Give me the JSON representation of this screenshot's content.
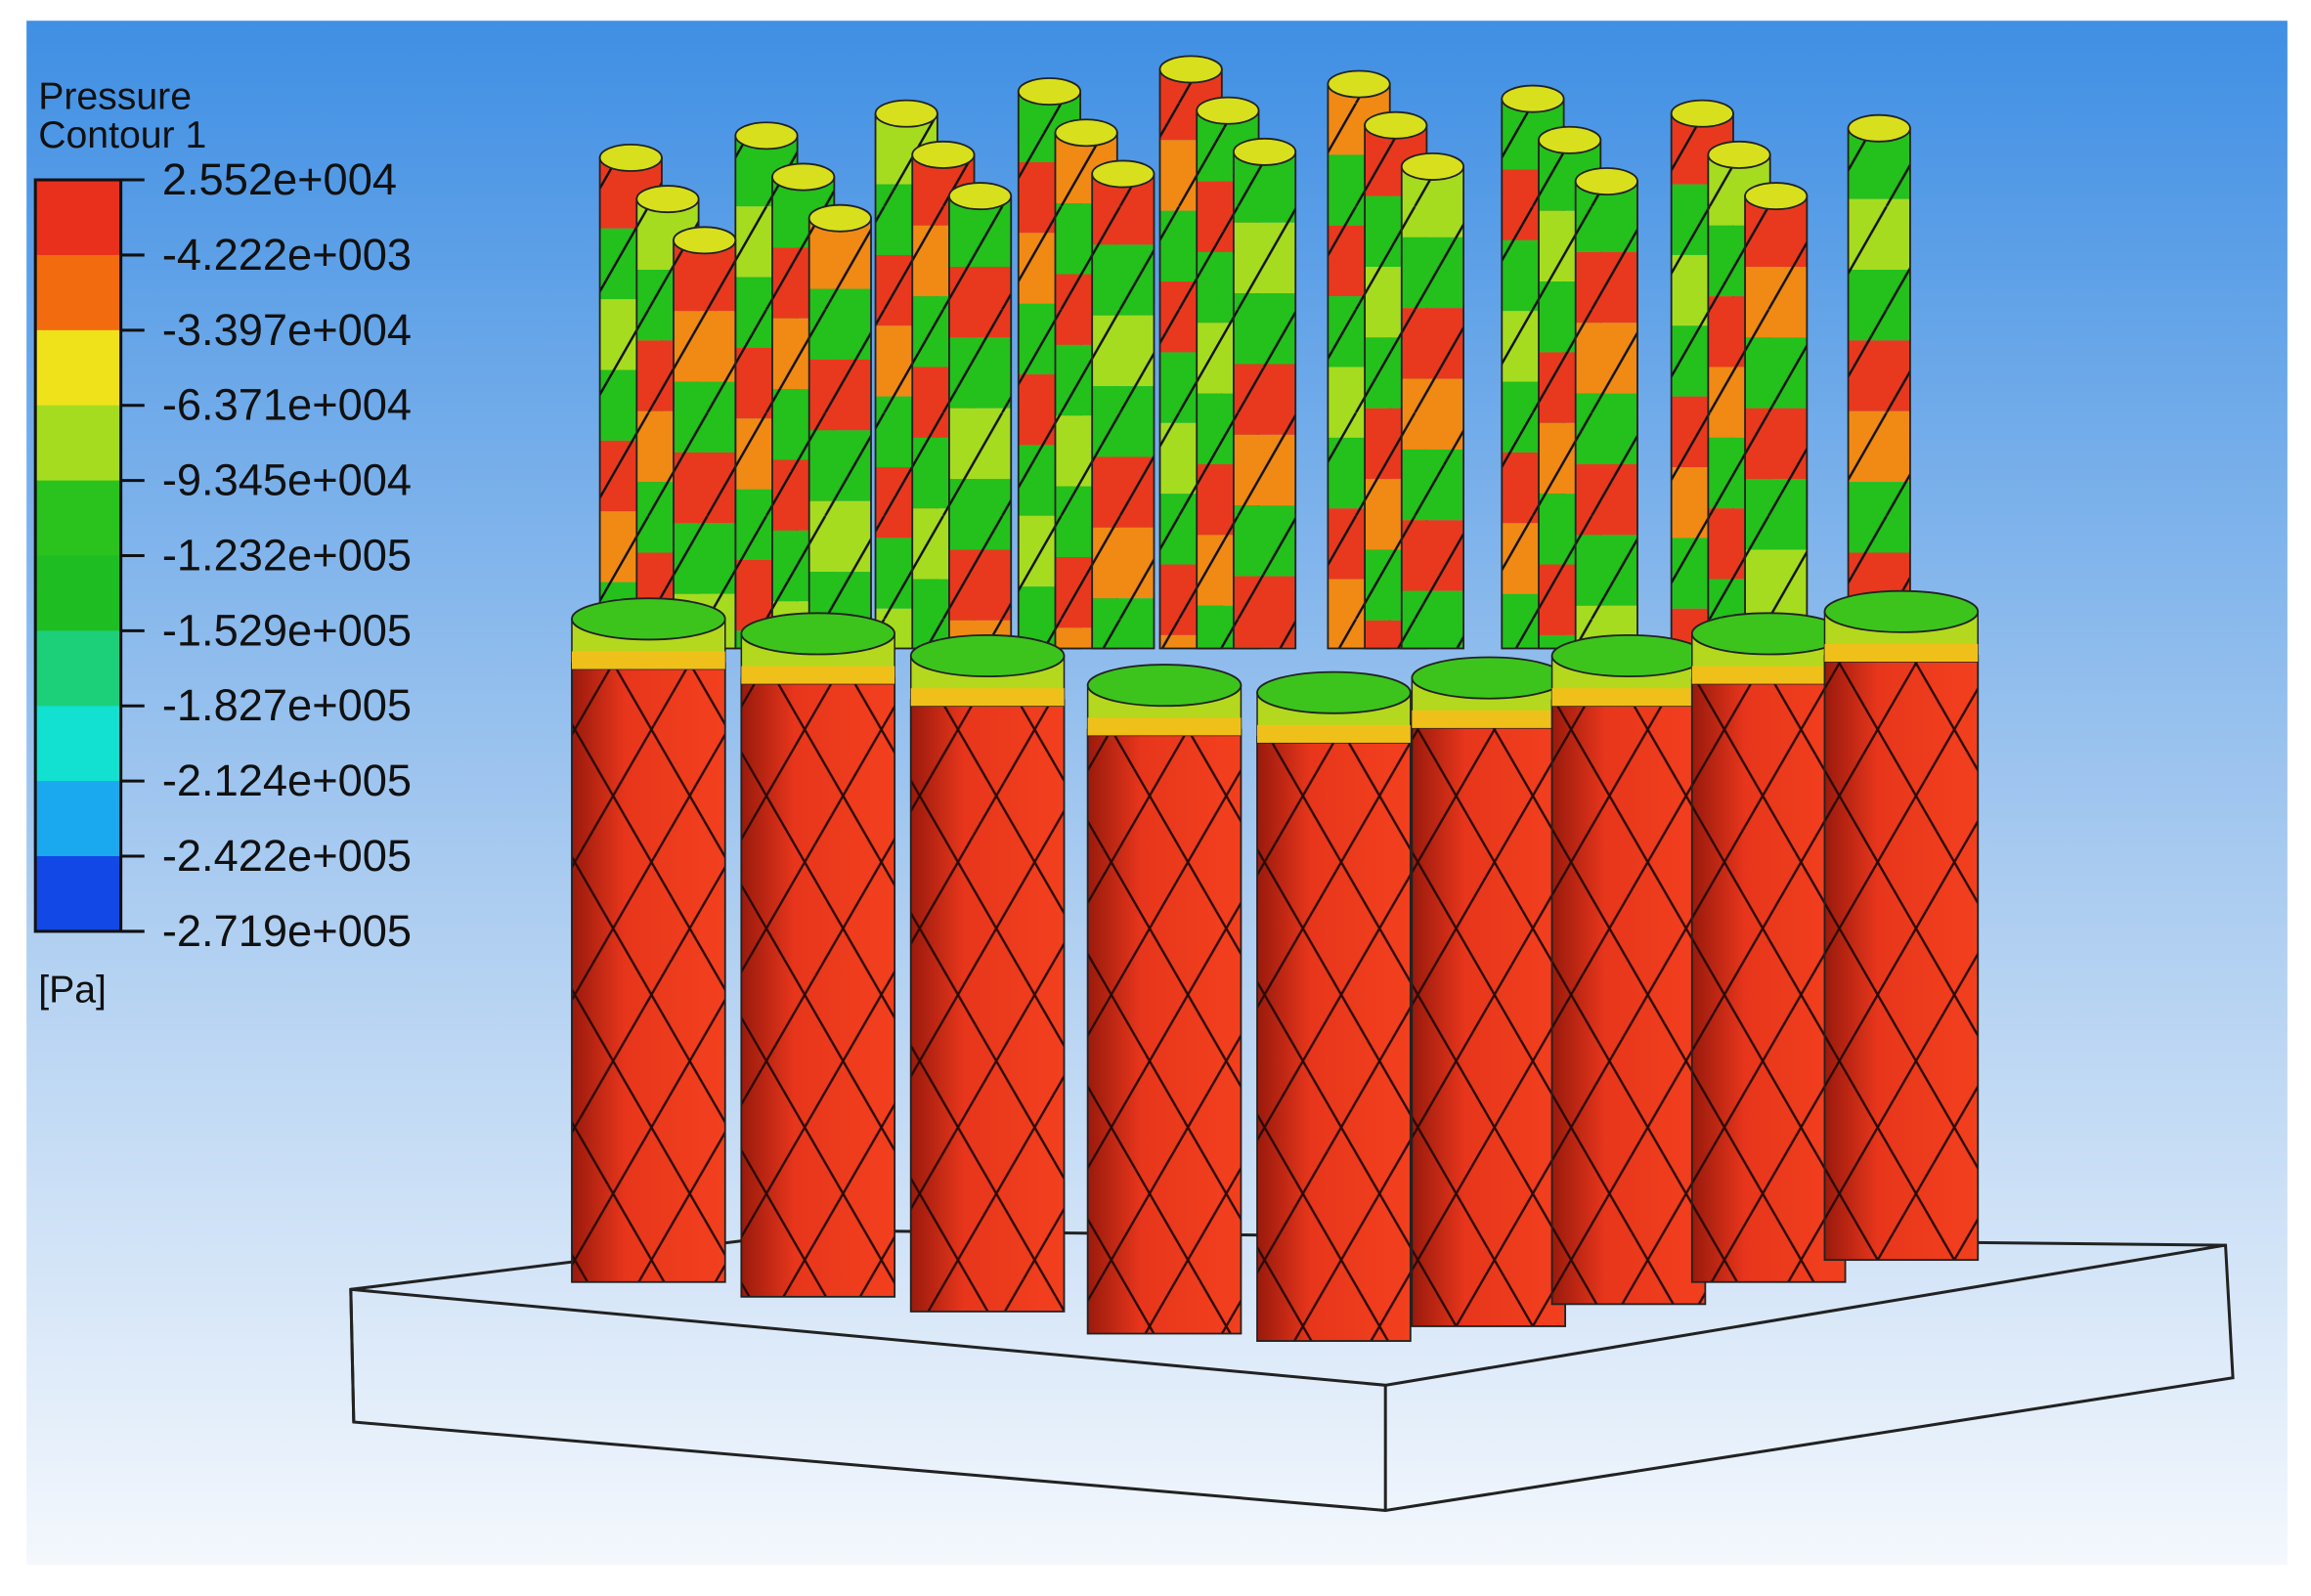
{
  "legend": {
    "title": [
      "Pressure",
      "Contour 1"
    ],
    "labels": [
      "2.552e+004",
      "-4.222e+003",
      "-3.397e+004",
      "-6.371e+004",
      "-9.345e+004",
      "-1.232e+005",
      "-1.529e+005",
      "-1.827e+005",
      "-2.124e+005",
      "-2.422e+005",
      "-2.719e+005"
    ],
    "unit": "[Pa]"
  }
}
